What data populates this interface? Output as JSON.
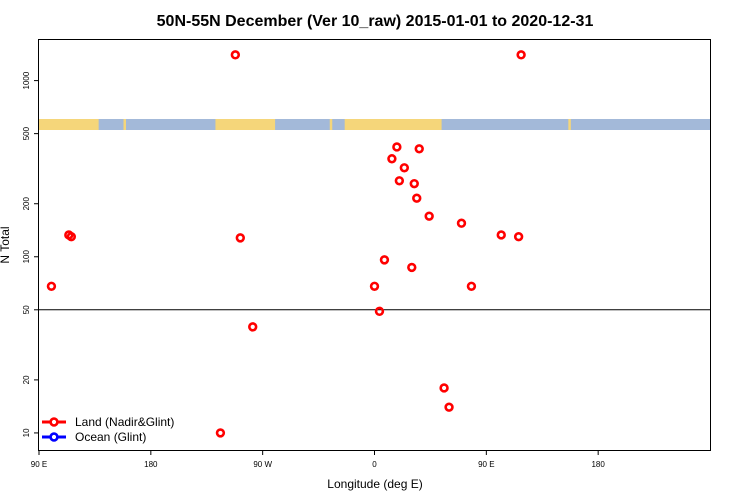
{
  "chart_data": {
    "type": "scatter",
    "title": "50N-55N December (Ver 10_raw)   2015-01-01 to 2020-12-31",
    "xlabel": "Longitude (deg E)",
    "ylabel": "N Total",
    "xlim": [
      -90,
      180
    ],
    "ylim": [
      8,
      1700
    ],
    "yscale": "log",
    "x_ticks": [
      {
        "value": -90,
        "label": "90 E"
      },
      {
        "value": -45,
        "label": "180"
      },
      {
        "value": 0,
        "label": "90 W"
      },
      {
        "value": 45,
        "label": "0"
      },
      {
        "value": 90,
        "label": "90 E"
      },
      {
        "value": 135,
        "label": "180"
      }
    ],
    "y_ticks": [
      {
        "value": 10,
        "label": "10"
      },
      {
        "value": 20,
        "label": "20"
      },
      {
        "value": 50,
        "label": "50"
      },
      {
        "value": 100,
        "label": "100"
      },
      {
        "value": 200,
        "label": "200"
      },
      {
        "value": 500,
        "label": "500"
      },
      {
        "value": 1000,
        "label": "1000"
      }
    ],
    "reference_line_y": 50,
    "land_ocean_strip": {
      "land_color": "#f5d67a",
      "ocean_color": "#a3b9d9",
      "land_ranges": [
        [
          -90,
          -66
        ],
        [
          -56,
          -55
        ],
        [
          -19,
          5
        ],
        [
          27,
          28
        ],
        [
          33,
          72
        ],
        [
          123,
          124
        ]
      ]
    },
    "series": [
      {
        "name": "Land (Nadir&Glint)",
        "color": "#ff0000",
        "x": [
          -85,
          -78,
          -77,
          -11,
          -9,
          -4,
          -17,
          45,
          47,
          49,
          52,
          54,
          55,
          57,
          60,
          61,
          62,
          63,
          67,
          73,
          75,
          80,
          84,
          96,
          103,
          104
        ],
        "y": [
          68,
          133,
          130,
          1400,
          128,
          40,
          10,
          68,
          49,
          96,
          360,
          420,
          270,
          320,
          87,
          260,
          215,
          410,
          170,
          18,
          14,
          155,
          68,
          133,
          130,
          1400
        ]
      },
      {
        "name": "Ocean (Glint)",
        "color": "#0000ff",
        "x": [],
        "y": []
      }
    ],
    "legend": "bottom-left",
    "grid": false
  }
}
